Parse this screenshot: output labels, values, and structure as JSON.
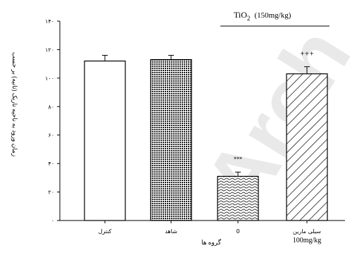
{
  "chart_data": {
    "type": "bar",
    "title": "",
    "ylabel": "زمان ورود به ناحیه تاریک (ثانیه) بر حسب",
    "xlabel": "گروه ها",
    "ylim": [
      0,
      140
    ],
    "yticks": [
      "۰",
      "۲۰",
      "۴۰",
      "۶۰",
      "۸۰",
      "۱۰۰",
      "۱۲۰",
      "۱۴۰"
    ],
    "ytick_values": [
      0,
      20,
      40,
      60,
      80,
      100,
      120,
      140
    ],
    "categories": [
      "کنترل",
      "شاهد",
      "0",
      "سیلی مارین"
    ],
    "category_sublabels": [
      "",
      "",
      "",
      "100mg/kg"
    ],
    "values": [
      112,
      113,
      31,
      103
    ],
    "errors": [
      4,
      3,
      3,
      5
    ],
    "patterns": [
      "white",
      "dots",
      "waves",
      "diagonal"
    ],
    "significance": [
      "",
      "",
      "***",
      "+++"
    ],
    "treatment_label": "TiO",
    "treatment_subscript": "2",
    "treatment_dose": "(150mg/kg)",
    "watermark": "Arch",
    "grid": false,
    "legend": "none"
  }
}
